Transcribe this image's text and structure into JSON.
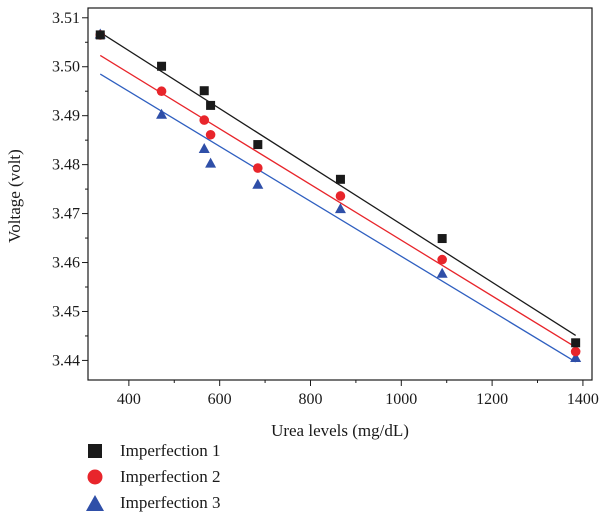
{
  "chart_data": {
    "type": "scatter",
    "xlabel": "Urea levels (mg/dL)",
    "ylabel": "Voltage (volt)",
    "xlim": [
      310,
      1420
    ],
    "ylim": [
      3.436,
      3.512
    ],
    "x_ticks": [
      400,
      600,
      800,
      1000,
      1200,
      1400
    ],
    "y_ticks": [
      3.44,
      3.45,
      3.46,
      3.47,
      3.48,
      3.49,
      3.5,
      3.51
    ],
    "x_tick_labels": [
      "400",
      "600",
      "800",
      "1000",
      "1200",
      "1400"
    ],
    "y_tick_labels": [
      "3.44",
      "3.45",
      "3.46",
      "3.47",
      "3.48",
      "3.49",
      "3.50",
      "3.51"
    ],
    "legend_position": "bottom-left",
    "series": [
      {
        "name": "Imperfection 1",
        "marker": "square",
        "color": "#1a1a1a",
        "line_color": "#1a1a1a",
        "x": [
          337,
          472,
          566,
          580,
          684,
          866,
          1090,
          1384
        ],
        "y": [
          3.5065,
          3.5001,
          3.4951,
          3.4921,
          3.4841,
          3.477,
          3.4649,
          3.4436
        ],
        "fit": [
          [
            337,
            3.507
          ],
          [
            1384,
            3.4451
          ]
        ]
      },
      {
        "name": "Imperfection 2",
        "marker": "circle",
        "color": "#e8252b",
        "line_color": "#e8252b",
        "x": [
          337,
          472,
          566,
          580,
          684,
          866,
          1090,
          1384
        ],
        "y": [
          3.5065,
          3.495,
          3.4891,
          3.4861,
          3.4793,
          3.4736,
          3.4606,
          3.4418
        ],
        "fit": [
          [
            337,
            3.5023
          ],
          [
            1384,
            3.4427
          ]
        ]
      },
      {
        "name": "Imperfection 3",
        "marker": "triangle",
        "color": "#2f4fa8",
        "line_color": "#2f5fc0",
        "x": [
          337,
          472,
          566,
          580,
          684,
          866,
          1090,
          1384
        ],
        "y": [
          3.5067,
          3.4903,
          3.4833,
          3.4803,
          3.476,
          3.471,
          3.4578,
          3.4406
        ],
        "fit": [
          [
            337,
            3.4985
          ],
          [
            1384,
            3.4397
          ]
        ]
      }
    ]
  }
}
